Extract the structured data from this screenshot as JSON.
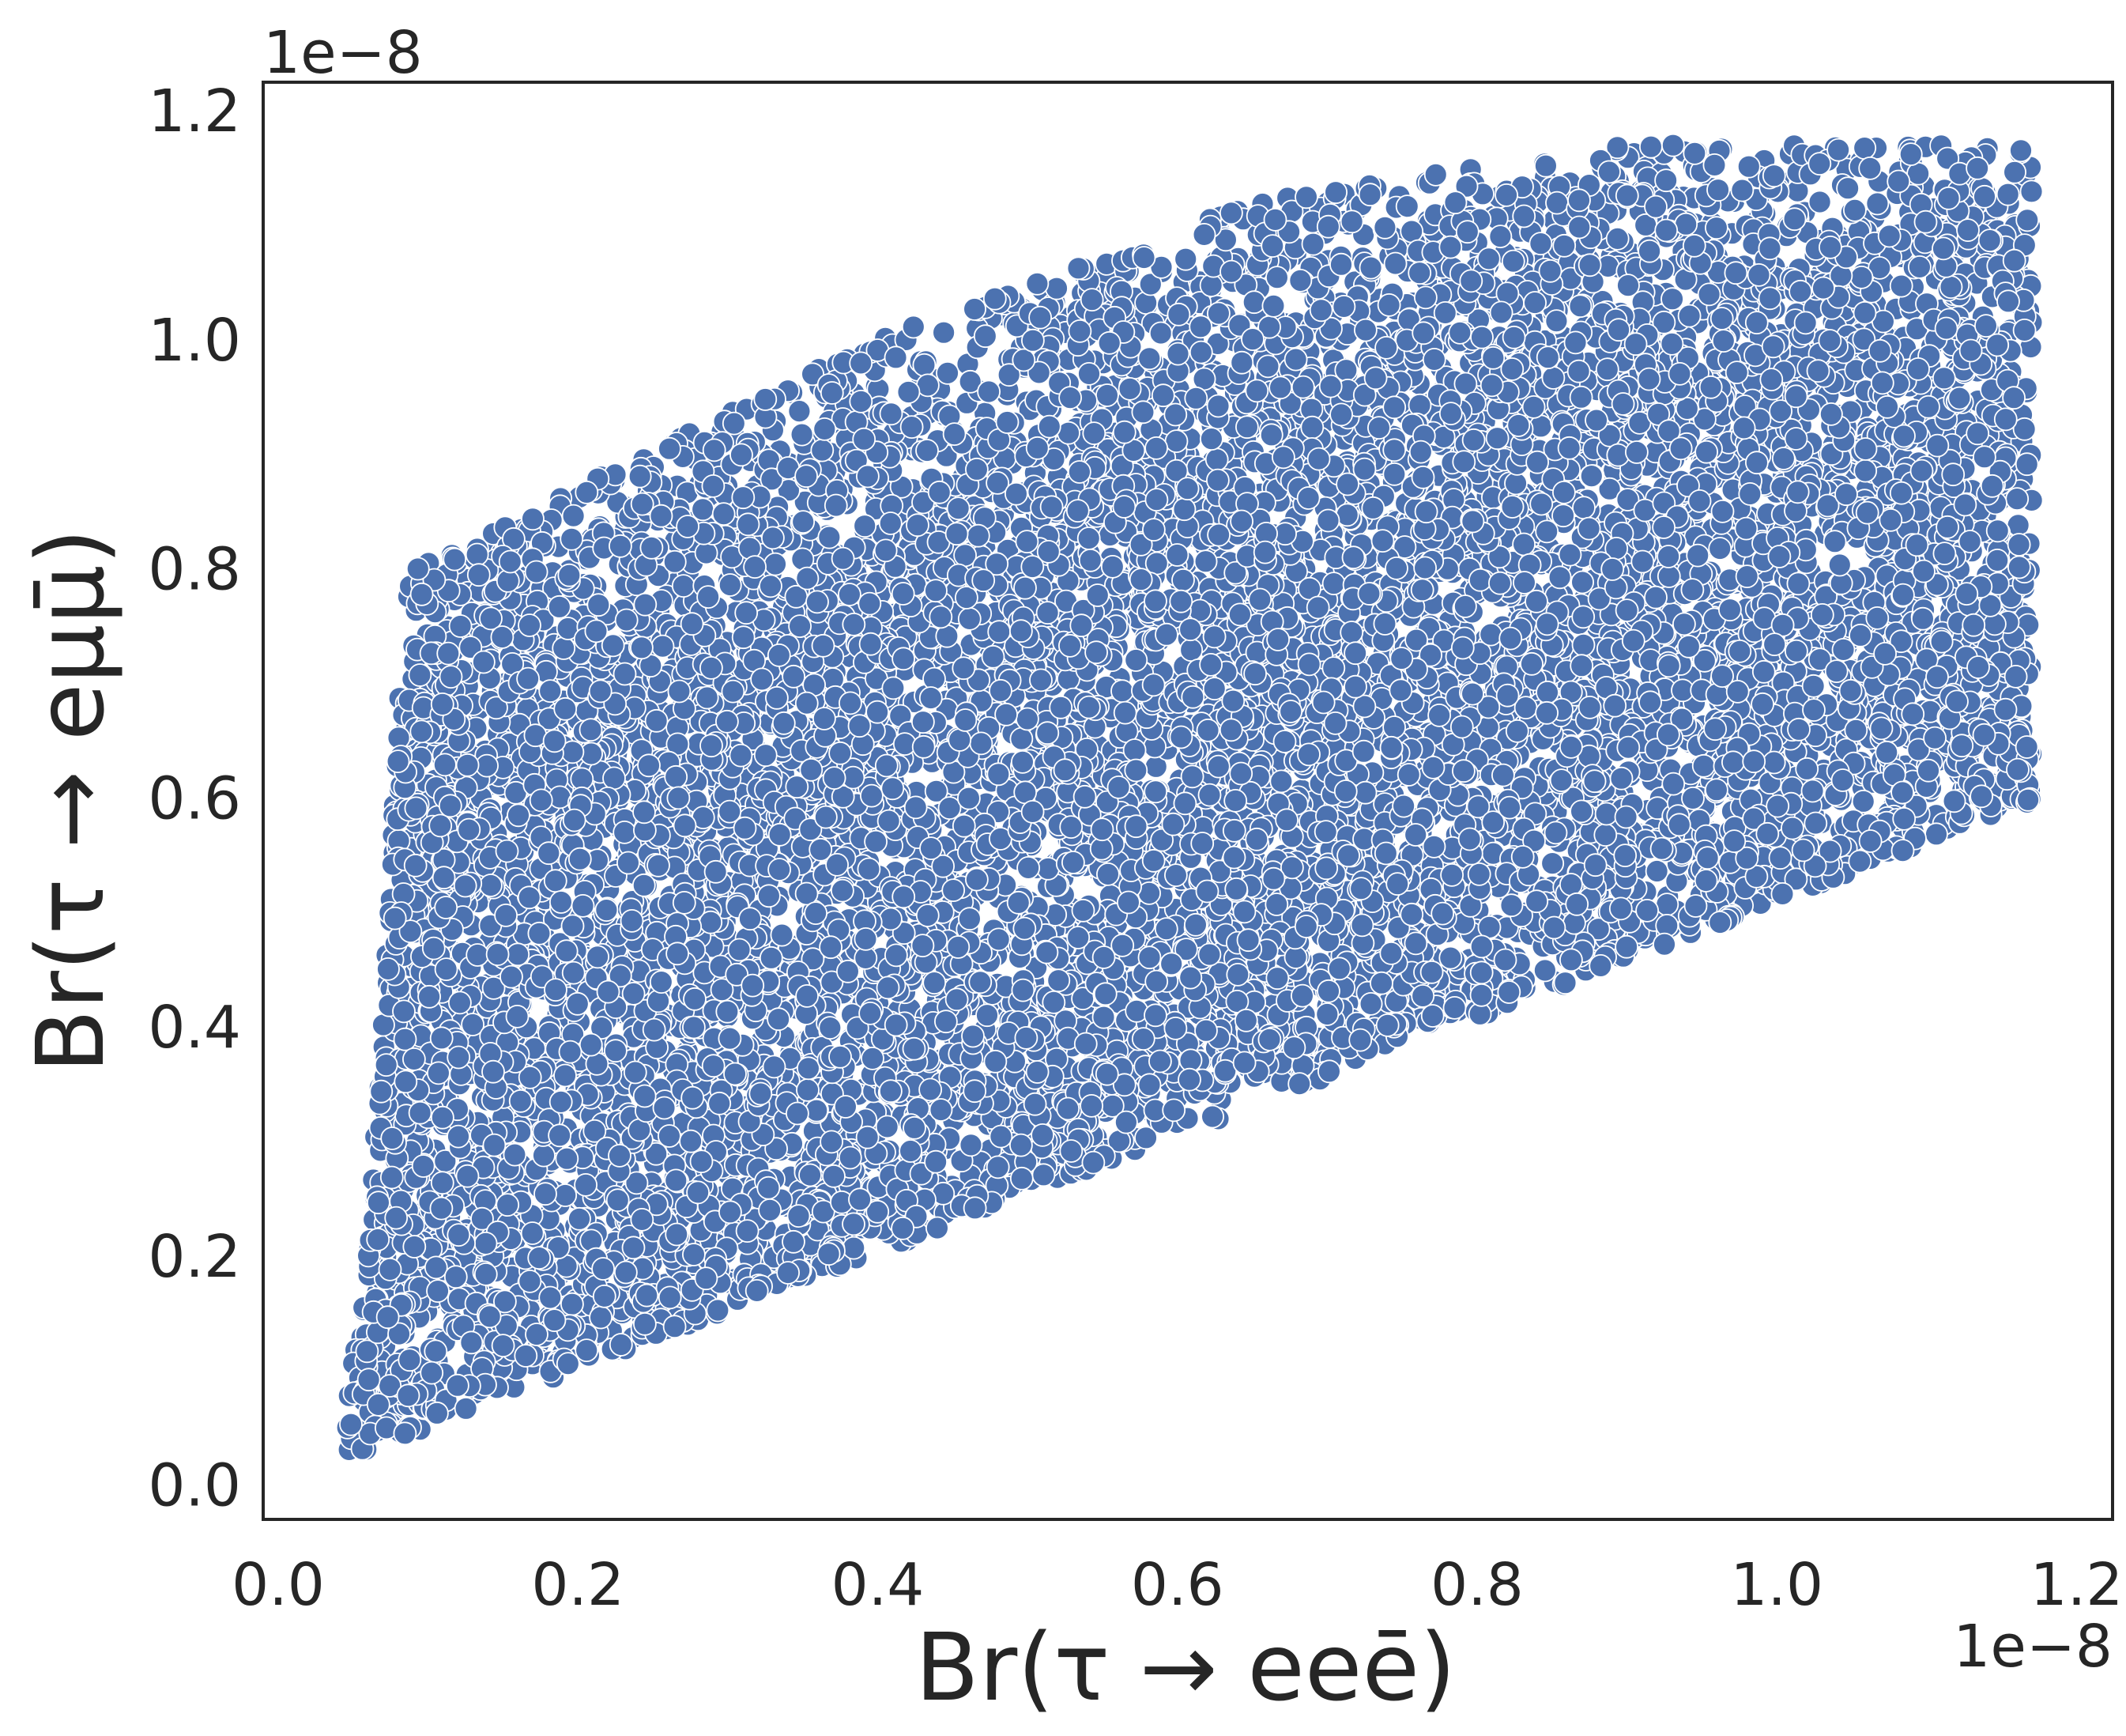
{
  "chart_data": {
    "type": "scatter",
    "xlabel": "Br(τ → eeē)",
    "ylabel": "Br(τ → eμμ̄)",
    "x_offset_text": "1e−8",
    "y_offset_text": "1e−8",
    "xlim": [
      -0.01,
      1.224
    ],
    "ylim": [
      -0.03,
      1.225
    ],
    "x_ticks": [
      0.0,
      0.2,
      0.4,
      0.6,
      0.8,
      1.0,
      1.2
    ],
    "x_tick_labels": [
      "0.0",
      "0.2",
      "0.4",
      "0.6",
      "0.8",
      "1.0",
      "1.2"
    ],
    "y_ticks": [
      0.0,
      0.2,
      0.4,
      0.6,
      0.8,
      1.0,
      1.2
    ],
    "y_tick_labels": [
      "0.0",
      "0.2",
      "0.4",
      "0.6",
      "0.8",
      "1.0",
      "1.2"
    ],
    "grid": false,
    "marker_color": "#4c72b0",
    "marker_edge_color": "#ffffff",
    "region": {
      "description_points": [
        [
          0.04,
          0.035
        ],
        [
          0.065,
          0.035
        ],
        [
          1.17,
          0.6
        ],
        [
          1.17,
          1.17
        ],
        [
          0.09,
          0.79
        ],
        [
          0.065,
          0.35
        ],
        [
          0.04,
          0.04
        ]
      ],
      "x_min": 0.04,
      "x_max": 1.17,
      "lower_edge_slope": 0.51,
      "upper_edge": [
        [
          0.09,
          0.8
        ],
        [
          0.4,
          1.0
        ],
        [
          0.65,
          1.12
        ],
        [
          0.9,
          1.17
        ],
        [
          1.17,
          1.17
        ]
      ],
      "left_edge": [
        [
          0.04,
          0.03
        ],
        [
          0.055,
          0.15
        ],
        [
          0.07,
          0.4
        ],
        [
          0.085,
          0.79
        ]
      ],
      "approx_point_count": 12000
    }
  }
}
